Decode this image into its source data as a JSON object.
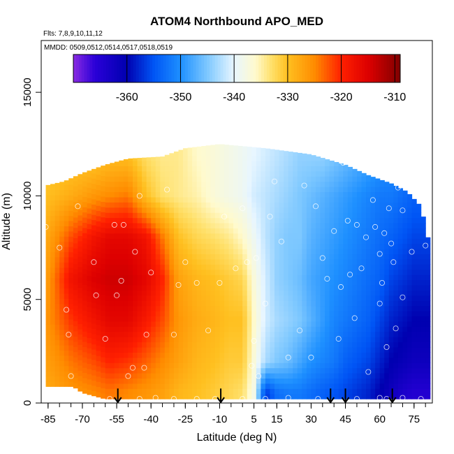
{
  "chart_data": {
    "type": "heatmap",
    "title": "ATOM4 Northbound APO_MED",
    "subtitle_flights": "Flts: 7,8,9,10,11,12",
    "subtitle_dates": "MMDD: 0509,0512,0514,0517,0518,0519",
    "xlabel": "Latitude (deg N)",
    "ylabel": "Altitude (m)",
    "xlim": [
      -88,
      83
    ],
    "ylim": [
      0,
      17500
    ],
    "x_ticks": [
      -85,
      -70,
      -55,
      -40,
      -25,
      -10,
      5,
      15,
      30,
      45,
      60,
      75
    ],
    "x_minor_step": 5,
    "y_ticks": [
      0,
      5000,
      10000,
      15000
    ],
    "colorbar": {
      "min": -370,
      "max": -309,
      "ticks": [
        -360,
        -350,
        -340,
        -330,
        -320,
        -310
      ],
      "stops": [
        {
          "v": -370,
          "c": "#8a2be2"
        },
        {
          "v": -366,
          "c": "#2a00d8"
        },
        {
          "v": -360,
          "c": "#0000b0"
        },
        {
          "v": -355,
          "c": "#0055f5"
        },
        {
          "v": -350,
          "c": "#1e90ff"
        },
        {
          "v": -345,
          "c": "#7ec8ff"
        },
        {
          "v": -340,
          "c": "#e8f6ff"
        },
        {
          "v": -336,
          "c": "#fffacd"
        },
        {
          "v": -333,
          "c": "#ffe06a"
        },
        {
          "v": -330,
          "c": "#ffc020"
        },
        {
          "v": -325,
          "c": "#ff8c00"
        },
        {
          "v": -320,
          "c": "#ff2000"
        },
        {
          "v": -315,
          "c": "#dd0000"
        },
        {
          "v": -309,
          "c": "#800000"
        }
      ]
    },
    "field": {
      "lat_range": [
        -86,
        81
      ],
      "top_altitude": [
        {
          "x": -86,
          "y": 10500
        },
        {
          "x": -78,
          "y": 10700
        },
        {
          "x": -70,
          "y": 11100
        },
        {
          "x": -60,
          "y": 11500
        },
        {
          "x": -50,
          "y": 11800
        },
        {
          "x": -35,
          "y": 11900
        },
        {
          "x": -25,
          "y": 12300
        },
        {
          "x": -10,
          "y": 12500
        },
        {
          "x": 10,
          "y": 12300
        },
        {
          "x": 30,
          "y": 12000
        },
        {
          "x": 45,
          "y": 11500
        },
        {
          "x": 55,
          "y": 11000
        },
        {
          "x": 65,
          "y": 10600
        },
        {
          "x": 72,
          "y": 10200
        },
        {
          "x": 78,
          "y": 9500
        },
        {
          "x": 81,
          "y": 8000
        }
      ],
      "bottom_altitude": [
        {
          "x": -86,
          "y": 800
        },
        {
          "x": -74,
          "y": 800
        },
        {
          "x": -70,
          "y": 500
        },
        {
          "x": -60,
          "y": 200
        },
        {
          "x": 81,
          "y": 200
        }
      ],
      "profile_lat": [
        -86,
        -75,
        -65,
        -58,
        -50,
        -42,
        -35,
        -28,
        -20,
        -12,
        -6,
        0,
        5,
        10,
        15,
        20,
        25,
        30,
        35,
        40,
        45,
        50,
        55,
        60,
        65,
        70,
        75,
        81
      ],
      "profile_alt": [
        500,
        2000,
        4000,
        6000,
        8000,
        10000,
        12000
      ],
      "values": [
        [
          -328,
          -327,
          -326,
          -327,
          -328,
          -330,
          -332
        ],
        [
          -326,
          -324,
          -321,
          -318,
          -322,
          -328,
          -331
        ],
        [
          -325,
          -322,
          -318,
          -315,
          -318,
          -326,
          -331
        ],
        [
          -324,
          -320,
          -316,
          -314,
          -316,
          -325,
          -330
        ],
        [
          -325,
          -321,
          -316,
          -314,
          -316,
          -324,
          -330
        ],
        [
          -326,
          -323,
          -319,
          -316,
          -318,
          -330,
          -333
        ],
        [
          -327,
          -325,
          -322,
          -320,
          -324,
          -333,
          -334
        ],
        [
          -329,
          -327,
          -326,
          -327,
          -330,
          -334,
          -334
        ],
        [
          -330,
          -329,
          -328,
          -329,
          -332,
          -335,
          -336
        ],
        [
          -331,
          -330,
          -329,
          -330,
          -333,
          -337,
          -337
        ],
        [
          -332,
          -331,
          -330,
          -331,
          -334,
          -338,
          -338
        ],
        [
          -333,
          -331,
          -330,
          -332,
          -336,
          -339,
          -339
        ],
        [
          -338,
          -337,
          -336,
          -337,
          -339,
          -341,
          -340
        ],
        [
          -357,
          -343,
          -341,
          -341,
          -342,
          -342,
          -341
        ],
        [
          -353,
          -345,
          -343,
          -344,
          -344,
          -343,
          -342
        ],
        [
          -352,
          -346,
          -344,
          -345,
          -345,
          -344,
          -343
        ],
        [
          -352,
          -348,
          -345,
          -346,
          -345,
          -345,
          -344
        ],
        [
          -353,
          -350,
          -347,
          -348,
          -347,
          -346,
          -344
        ],
        [
          -354,
          -351,
          -349,
          -349,
          -348,
          -347,
          -344
        ],
        [
          -355,
          -352,
          -351,
          -350,
          -349,
          -348,
          -345
        ],
        [
          -356,
          -354,
          -352,
          -351,
          -350,
          -349,
          -346
        ],
        [
          -357,
          -355,
          -353,
          -352,
          -351,
          -350,
          -347
        ],
        [
          -358,
          -356,
          -354,
          -353,
          -352,
          -351,
          -348
        ],
        [
          -360,
          -358,
          -356,
          -354,
          -353,
          -352,
          -349
        ],
        [
          -362,
          -360,
          -358,
          -356,
          -354,
          -352,
          -350
        ],
        [
          -364,
          -361,
          -359,
          -357,
          -355,
          -353,
          -351
        ],
        [
          -365,
          -362,
          -360,
          -358,
          -356,
          -354,
          -352
        ],
        [
          -365,
          -362,
          -360,
          -358,
          -356,
          -354,
          -352
        ]
      ]
    },
    "samples": [
      {
        "x": -86,
        "y": 8500
      },
      {
        "x": -80,
        "y": 7500
      },
      {
        "x": -77,
        "y": 4500
      },
      {
        "x": -76,
        "y": 3300
      },
      {
        "x": -75,
        "y": 1300
      },
      {
        "x": -72,
        "y": 9500
      },
      {
        "x": -65,
        "y": 6800
      },
      {
        "x": -64,
        "y": 5200
      },
      {
        "x": -60,
        "y": 3100
      },
      {
        "x": -56,
        "y": 8600
      },
      {
        "x": -55,
        "y": 5200
      },
      {
        "x": -53,
        "y": 5900
      },
      {
        "x": -52,
        "y": 8600
      },
      {
        "x": -50,
        "y": 1300
      },
      {
        "x": -48,
        "y": 1700
      },
      {
        "x": -47,
        "y": 7300
      },
      {
        "x": -45,
        "y": 10000
      },
      {
        "x": -43,
        "y": 1700
      },
      {
        "x": -42,
        "y": 3300
      },
      {
        "x": -40,
        "y": 6300
      },
      {
        "x": -33,
        "y": 10300
      },
      {
        "x": -30,
        "y": 3300
      },
      {
        "x": -28,
        "y": 5700
      },
      {
        "x": -25,
        "y": 6800
      },
      {
        "x": -20,
        "y": 5800
      },
      {
        "x": -15,
        "y": 3500
      },
      {
        "x": -10,
        "y": 5800
      },
      {
        "x": -8,
        "y": 9000
      },
      {
        "x": -3,
        "y": 6500
      },
      {
        "x": 0,
        "y": 9400
      },
      {
        "x": 2,
        "y": 6800
      },
      {
        "x": 4,
        "y": 1800
      },
      {
        "x": 5,
        "y": 3000
      },
      {
        "x": 6,
        "y": 7000
      },
      {
        "x": 7,
        "y": 1300
      },
      {
        "x": 10,
        "y": 4800
      },
      {
        "x": 12,
        "y": 9000
      },
      {
        "x": 14,
        "y": 10700
      },
      {
        "x": 17,
        "y": 7800
      },
      {
        "x": 20,
        "y": 2200
      },
      {
        "x": 25,
        "y": 3500
      },
      {
        "x": 27,
        "y": 10500
      },
      {
        "x": 30,
        "y": 2200
      },
      {
        "x": 32,
        "y": 9500
      },
      {
        "x": 35,
        "y": 7000
      },
      {
        "x": 37,
        "y": 6000
      },
      {
        "x": 39,
        "y": 12400
      },
      {
        "x": 40,
        "y": 8300
      },
      {
        "x": 42,
        "y": 3100
      },
      {
        "x": 43,
        "y": 5600
      },
      {
        "x": 44,
        "y": 11600
      },
      {
        "x": 46,
        "y": 8800
      },
      {
        "x": 47,
        "y": 6200
      },
      {
        "x": 49,
        "y": 4100
      },
      {
        "x": 50,
        "y": 8600
      },
      {
        "x": 52,
        "y": 6500
      },
      {
        "x": 54,
        "y": 8000
      },
      {
        "x": 55,
        "y": 1500
      },
      {
        "x": 57,
        "y": 9800
      },
      {
        "x": 58,
        "y": 8500
      },
      {
        "x": 60,
        "y": 7200
      },
      {
        "x": 60,
        "y": 4800
      },
      {
        "x": 61,
        "y": 5800
      },
      {
        "x": 62,
        "y": 8200
      },
      {
        "x": 63,
        "y": 2700
      },
      {
        "x": 64,
        "y": 9400
      },
      {
        "x": 65,
        "y": 7700
      },
      {
        "x": 66,
        "y": 6800
      },
      {
        "x": 67,
        "y": 3600
      },
      {
        "x": 68,
        "y": 10400
      },
      {
        "x": 70,
        "y": 5100
      },
      {
        "x": 70,
        "y": 9300
      },
      {
        "x": 74,
        "y": 7300
      },
      {
        "x": 76,
        "y": 10200
      },
      {
        "x": 80,
        "y": 7600
      },
      {
        "x": -58,
        "y": 200
      },
      {
        "x": -45,
        "y": 200
      },
      {
        "x": -38,
        "y": 250
      },
      {
        "x": -30,
        "y": 200
      },
      {
        "x": -20,
        "y": 200
      },
      {
        "x": -12,
        "y": 200
      },
      {
        "x": 0,
        "y": 200
      },
      {
        "x": 10,
        "y": 200
      },
      {
        "x": 20,
        "y": 250
      },
      {
        "x": 33,
        "y": 200
      },
      {
        "x": 50,
        "y": 200
      },
      {
        "x": 60,
        "y": 250
      },
      {
        "x": 63,
        "y": 200
      },
      {
        "x": 70,
        "y": 250
      },
      {
        "x": 78,
        "y": 200
      }
    ],
    "arrows": [
      -54.5,
      -9.5,
      38.5,
      45,
      65.5
    ],
    "arrow_top_altitude": 700
  }
}
